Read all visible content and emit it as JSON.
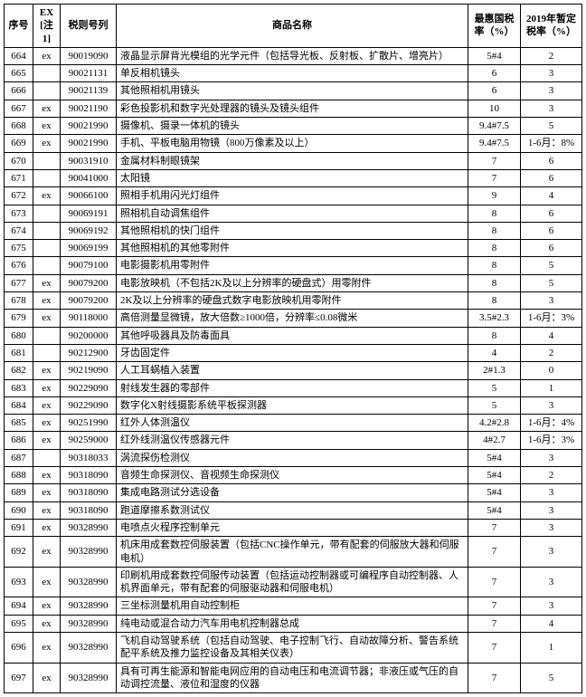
{
  "headers": {
    "seq": "序号",
    "ex": "EX\n[注1]",
    "code": "税则号列",
    "name": "商品名称",
    "rate1": "最惠国税率（%）",
    "rate2": "2019年暂定税率（%）"
  },
  "rows": [
    {
      "seq": "664",
      "ex": "ex",
      "code": "90019090",
      "name": "液晶显示屏背光模组的光学元件（包括导光板、反射板、扩散片、增亮片）",
      "rate1": "5#4",
      "rate2": "2"
    },
    {
      "seq": "665",
      "ex": "",
      "code": "90021131",
      "name": "单反相机镜头",
      "rate1": "6",
      "rate2": "3"
    },
    {
      "seq": "666",
      "ex": "",
      "code": "90021139",
      "name": "其他照相机用镜头",
      "rate1": "6",
      "rate2": "3"
    },
    {
      "seq": "667",
      "ex": "ex",
      "code": "90021190",
      "name": "彩色投影机和数字光处理器的镜头及镜头组件",
      "rate1": "10",
      "rate2": "3"
    },
    {
      "seq": "668",
      "ex": "ex",
      "code": "90021990",
      "name": "摄像机、摄录一体机的镜头",
      "rate1": "9.4#7.5",
      "rate2": "5"
    },
    {
      "seq": "669",
      "ex": "ex",
      "code": "90021990",
      "name": "手机、平板电脑用物镜（800万像素及以上）",
      "rate1": "9.4#7.5",
      "rate2": "1-6月：8%"
    },
    {
      "seq": "670",
      "ex": "",
      "code": "90031910",
      "name": "金属材料制眼镜架",
      "rate1": "7",
      "rate2": "6"
    },
    {
      "seq": "671",
      "ex": "",
      "code": "90041000",
      "name": "太阳镜",
      "rate1": "7",
      "rate2": "6"
    },
    {
      "seq": "672",
      "ex": "ex",
      "code": "90066100",
      "name": "照相手机用闪光灯组件",
      "rate1": "9",
      "rate2": "4"
    },
    {
      "seq": "673",
      "ex": "",
      "code": "90069191",
      "name": "照相机自动调焦组件",
      "rate1": "8",
      "rate2": "6"
    },
    {
      "seq": "674",
      "ex": "",
      "code": "90069192",
      "name": "其他照相机的快门组件",
      "rate1": "8",
      "rate2": "6"
    },
    {
      "seq": "675",
      "ex": "",
      "code": "90069199",
      "name": "其他照相机的其他零附件",
      "rate1": "8",
      "rate2": "6"
    },
    {
      "seq": "676",
      "ex": "",
      "code": "90079100",
      "name": "电影摄影机用零附件",
      "rate1": "8",
      "rate2": "5"
    },
    {
      "seq": "677",
      "ex": "ex",
      "code": "90079200",
      "name": "电影放映机（不包括2K及以上分辨率的硬盘式）用零附件",
      "rate1": "8",
      "rate2": "5"
    },
    {
      "seq": "678",
      "ex": "ex",
      "code": "90079200",
      "name": "2K及以上分辨率的硬盘式数字电影放映机用零附件",
      "rate1": "8",
      "rate2": "3"
    },
    {
      "seq": "679",
      "ex": "ex",
      "code": "90118000",
      "name": "高倍测量显微镜，放大倍数≥1000倍，分辨率≤0.08微米",
      "rate1": "3.5#2.3",
      "rate2": "1-6月：3%"
    },
    {
      "seq": "680",
      "ex": "",
      "code": "90200000",
      "name": "其他呼吸器具及防毒面具",
      "rate1": "8",
      "rate2": "4"
    },
    {
      "seq": "681",
      "ex": "",
      "code": "90212900",
      "name": "牙齿固定件",
      "rate1": "4",
      "rate2": "2"
    },
    {
      "seq": "682",
      "ex": "ex",
      "code": "90219090",
      "name": "人工耳蜗植入装置",
      "rate1": "2#1.3",
      "rate2": "0"
    },
    {
      "seq": "683",
      "ex": "ex",
      "code": "90229090",
      "name": "射线发生器的零部件",
      "rate1": "5",
      "rate2": "1"
    },
    {
      "seq": "684",
      "ex": "ex",
      "code": "90229090",
      "name": "数字化X射线摄影系统平板探测器",
      "rate1": "5",
      "rate2": "3"
    },
    {
      "seq": "685",
      "ex": "ex",
      "code": "90251990",
      "name": "红外人体测温仪",
      "rate1": "4.2#2.8",
      "rate2": "1-6月：4%"
    },
    {
      "seq": "686",
      "ex": "ex",
      "code": "90259000",
      "name": "红外线测温仪传感器元件",
      "rate1": "4#2.7",
      "rate2": "1-6月：3%"
    },
    {
      "seq": "687",
      "ex": "",
      "code": "90318033",
      "name": "涡流探伤检测仪",
      "rate1": "5#4",
      "rate2": "3"
    },
    {
      "seq": "688",
      "ex": "ex",
      "code": "90318090",
      "name": "音频生命探测仪、音视频生命探测仪",
      "rate1": "5#4",
      "rate2": "2"
    },
    {
      "seq": "689",
      "ex": "ex",
      "code": "90318090",
      "name": "集成电路测试分选设备",
      "rate1": "5#4",
      "rate2": "3"
    },
    {
      "seq": "690",
      "ex": "ex",
      "code": "90318090",
      "name": "跑道摩擦系数测试仪",
      "rate1": "5#4",
      "rate2": "3"
    },
    {
      "seq": "691",
      "ex": "ex",
      "code": "90328990",
      "name": "电喷点火程序控制单元",
      "rate1": "7",
      "rate2": "3"
    },
    {
      "seq": "692",
      "ex": "ex",
      "code": "90328990",
      "name": "机床用成套数控伺服装置（包括CNC操作单元，带有配套的伺服放大器和伺服电机）",
      "rate1": "7",
      "rate2": "3"
    },
    {
      "seq": "693",
      "ex": "ex",
      "code": "90328990",
      "name": "印刷机用成套数控伺服传动装置（包括运动控制器或可编程序自动控制器、人机界面单元，带有配套的伺服驱动器和伺服电机）",
      "rate1": "7",
      "rate2": "3"
    },
    {
      "seq": "694",
      "ex": "ex",
      "code": "90328990",
      "name": "三坐标测量机用自动控制柜",
      "rate1": "7",
      "rate2": "3"
    },
    {
      "seq": "695",
      "ex": "ex",
      "code": "90328990",
      "name": "纯电动或混合动力汽车用电机控制器总成",
      "rate1": "7",
      "rate2": "4"
    },
    {
      "seq": "696",
      "ex": "ex",
      "code": "90328990",
      "name": "飞机自动驾驶系统（包括自动驾驶、电子控制飞行、自动故障分析、警告系统配平系统及推力监控设备及其相关仪表）",
      "rate1": "7",
      "rate2": "1"
    },
    {
      "seq": "697",
      "ex": "ex",
      "code": "90328990",
      "name": "具有可再生能源和智能电网应用的自动电压和电流调节器；非液压或气压的自动调控流量、液位和湿度的仪器",
      "rate1": "7",
      "rate2": "5"
    }
  ]
}
